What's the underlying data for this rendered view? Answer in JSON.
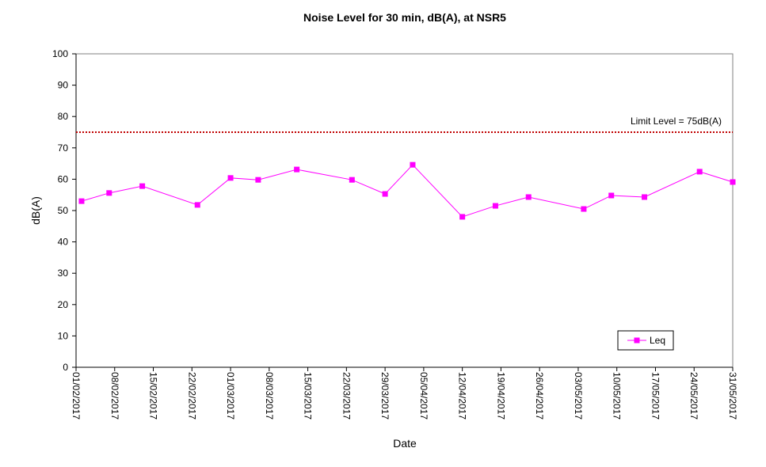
{
  "chart_data": {
    "type": "line",
    "title": "Noise Level for 30 min, dB(A), at NSR5",
    "x_label": "Date",
    "y_label": "dB(A)",
    "x": [
      "02/02/2017",
      "07/02/2017",
      "13/02/2017",
      "23/02/2017",
      "01/03/2017",
      "06/03/2017",
      "13/03/2017",
      "23/03/2017",
      "29/03/2017",
      "03/04/2017",
      "12/04/2017",
      "18/04/2017",
      "24/04/2017",
      "04/05/2017",
      "09/05/2017",
      "15/05/2017",
      "25/05/2017",
      "31/05/2017"
    ],
    "series": [
      {
        "name": "Leq",
        "color": "#ff00ff",
        "values": [
          53.0,
          55.6,
          57.8,
          51.8,
          60.4,
          59.8,
          63.1,
          59.8,
          55.3,
          64.6,
          48.0,
          51.5,
          54.3,
          50.5,
          54.8,
          54.3,
          62.4,
          59.1
        ]
      }
    ],
    "xlim": [
      "01/02/2017",
      "31/05/2017"
    ],
    "xticks": [
      "01/02/2017",
      "08/02/2017",
      "15/02/2017",
      "22/02/2017",
      "01/03/2017",
      "08/03/2017",
      "15/03/2017",
      "22/03/2017",
      "29/03/2017",
      "05/04/2017",
      "12/04/2017",
      "19/04/2017",
      "26/04/2017",
      "03/05/2017",
      "10/05/2017",
      "17/05/2017",
      "24/05/2017",
      "31/05/2017"
    ],
    "ylim": [
      0,
      100
    ],
    "yticks": [
      0,
      10,
      20,
      30,
      40,
      50,
      60,
      70,
      80,
      90,
      100
    ],
    "reference_line": {
      "value": 75,
      "label": "Limit Level  = 75dB(A)",
      "color": "#c00000"
    },
    "legend": "lower right",
    "grid": false
  }
}
